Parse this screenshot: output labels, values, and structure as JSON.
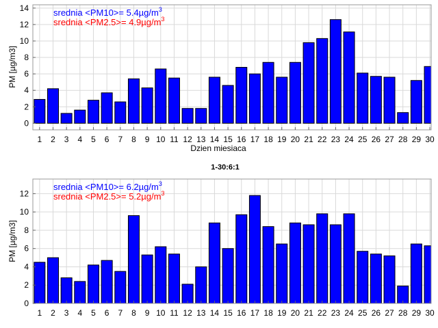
{
  "chart_data": [
    {
      "type": "bar",
      "title": "",
      "xlabel": "Dzien miesiaca",
      "ylabel": "PM [µg/m3]",
      "ylim": [
        -0.8,
        14.4
      ],
      "xlim": [
        0.5,
        30.1
      ],
      "yticks": [
        0,
        2,
        4,
        6,
        8,
        10,
        12,
        14
      ],
      "grid": true,
      "categories": [
        1,
        2,
        3,
        4,
        5,
        6,
        7,
        8,
        9,
        10,
        11,
        12,
        13,
        14,
        15,
        16,
        17,
        18,
        19,
        20,
        21,
        22,
        23,
        24,
        25,
        26,
        27,
        28,
        29,
        30
      ],
      "values": [
        2.9,
        4.2,
        1.2,
        1.6,
        2.8,
        3.7,
        2.6,
        5.4,
        4.3,
        6.6,
        5.5,
        1.8,
        1.8,
        5.6,
        4.6,
        6.8,
        6.0,
        7.4,
        5.6,
        7.4,
        9.8,
        10.3,
        12.6,
        11.1,
        6.1,
        5.7,
        5.6,
        1.3,
        5.2,
        6.9
      ],
      "color": "#0000ff",
      "annotations": [
        {
          "text": "srednia <PM10>= 5.4µg/m",
          "sup": "3",
          "color": "#0000ff"
        },
        {
          "text": "srednia <PM2.5>= 4.9µg/m",
          "sup": "3",
          "color": "#ff0000"
        }
      ]
    },
    {
      "type": "bar",
      "title": "1-30:6:1",
      "xlabel": "",
      "ylabel": "PM [µg/m3]",
      "ylim": [
        0,
        13.6
      ],
      "xlim": [
        0.5,
        30.1
      ],
      "yticks": [
        0,
        2,
        4,
        6,
        8,
        10,
        12
      ],
      "grid": true,
      "categories": [
        1,
        2,
        3,
        4,
        5,
        6,
        7,
        8,
        9,
        10,
        11,
        12,
        13,
        14,
        15,
        16,
        17,
        18,
        19,
        20,
        21,
        22,
        23,
        24,
        25,
        26,
        27,
        28,
        29,
        30
      ],
      "values": [
        4.5,
        5.0,
        2.8,
        2.4,
        4.2,
        4.7,
        3.5,
        9.6,
        5.3,
        6.2,
        5.4,
        2.1,
        4.0,
        8.8,
        6.0,
        9.7,
        11.8,
        8.4,
        6.5,
        8.8,
        8.6,
        9.8,
        8.6,
        9.8,
        5.7,
        5.4,
        5.2,
        1.9,
        6.5,
        6.3
      ],
      "color": "#0000ff",
      "annotations": [
        {
          "text": "srednia <PM10>= 6.2µg/m",
          "sup": "3",
          "color": "#0000ff"
        },
        {
          "text": "srednia <PM2.5>= 5.2µg/m",
          "sup": "3",
          "color": "#ff0000"
        }
      ]
    }
  ]
}
